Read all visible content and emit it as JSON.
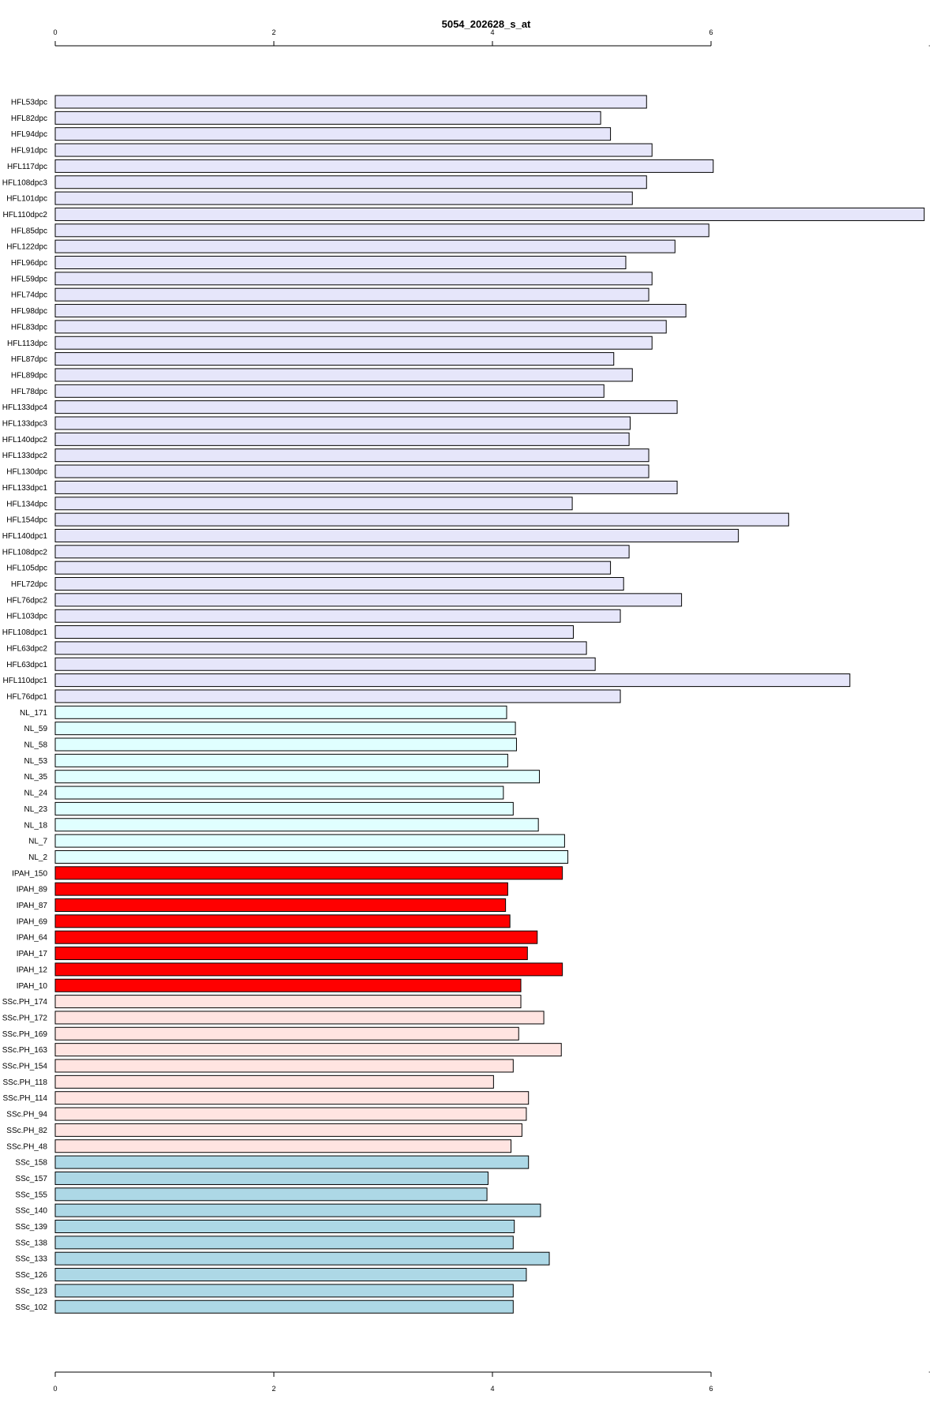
{
  "chart_data": {
    "type": "bar",
    "orientation": "horizontal",
    "title": "5054_202628_s_at",
    "xlabel": "",
    "ylabel": "",
    "xlim": [
      0,
      8
    ],
    "x_ticks": [
      0,
      2,
      4,
      6
    ],
    "grid": false,
    "legend": "none",
    "categories": [
      "HFL53dpc",
      "HFL82dpc",
      "HFL94dpc",
      "HFL91dpc",
      "HFL117dpc",
      "HFL108dpc3",
      "HFL101dpc",
      "HFL110dpc2",
      "HFL85dpc",
      "HFL122dpc",
      "HFL96dpc",
      "HFL59dpc",
      "HFL74dpc",
      "HFL98dpc",
      "HFL83dpc",
      "HFL113dpc",
      "HFL87dpc",
      "HFL89dpc",
      "HFL78dpc",
      "HFL133dpc4",
      "HFL133dpc3",
      "HFL140dpc2",
      "HFL133dpc2",
      "HFL130dpc",
      "HFL133dpc1",
      "HFL134dpc",
      "HFL154dpc",
      "HFL140dpc1",
      "HFL108dpc2",
      "HFL105dpc",
      "HFL72dpc",
      "HFL76dpc2",
      "HFL103dpc",
      "HFL108dpc1",
      "HFL63dpc2",
      "HFL63dpc1",
      "HFL110dpc1",
      "HFL76dpc1",
      "NL_171",
      "NL_59",
      "NL_58",
      "NL_53",
      "NL_35",
      "NL_24",
      "NL_23",
      "NL_18",
      "NL_7",
      "NL_2",
      "IPAH_150",
      "IPAH_89",
      "IPAH_87",
      "IPAH_69",
      "IPAH_64",
      "IPAH_17",
      "IPAH_12",
      "IPAH_10",
      "SSc.PH_174",
      "SSc.PH_172",
      "SSc.PH_169",
      "SSc.PH_163",
      "SSc.PH_154",
      "SSc.PH_118",
      "SSc.PH_114",
      "SSc.PH_94",
      "SSc.PH_82",
      "SSc.PH_48",
      "SSc_158",
      "SSc_157",
      "SSc_155",
      "SSc_140",
      "SSc_139",
      "SSc_138",
      "SSc_133",
      "SSc_126",
      "SSc_123",
      "SSc_102"
    ],
    "values": [
      5.41,
      4.99,
      5.08,
      5.46,
      6.02,
      5.41,
      5.28,
      7.95,
      5.98,
      5.67,
      5.22,
      5.46,
      5.43,
      5.77,
      5.59,
      5.46,
      5.11,
      5.28,
      5.02,
      5.69,
      5.26,
      5.25,
      5.43,
      5.43,
      5.69,
      4.73,
      6.71,
      6.25,
      5.25,
      5.08,
      5.2,
      5.73,
      5.17,
      4.74,
      4.86,
      4.94,
      7.27,
      5.17,
      4.13,
      4.21,
      4.22,
      4.14,
      4.43,
      4.1,
      4.19,
      4.42,
      4.66,
      4.69,
      4.64,
      4.14,
      4.12,
      4.16,
      4.41,
      4.32,
      4.64,
      4.26,
      4.26,
      4.47,
      4.24,
      4.63,
      4.19,
      4.01,
      4.33,
      4.31,
      4.27,
      4.17,
      4.33,
      3.96,
      3.95,
      4.44,
      4.2,
      4.19,
      4.52,
      4.31,
      4.19,
      4.19
    ],
    "colors": [
      "#e6e6fa",
      "#e6e6fa",
      "#e6e6fa",
      "#e6e6fa",
      "#e6e6fa",
      "#e6e6fa",
      "#e6e6fa",
      "#e6e6fa",
      "#e6e6fa",
      "#e6e6fa",
      "#e6e6fa",
      "#e6e6fa",
      "#e6e6fa",
      "#e6e6fa",
      "#e6e6fa",
      "#e6e6fa",
      "#e6e6fa",
      "#e6e6fa",
      "#e6e6fa",
      "#e6e6fa",
      "#e6e6fa",
      "#e6e6fa",
      "#e6e6fa",
      "#e6e6fa",
      "#e6e6fa",
      "#e6e6fa",
      "#e6e6fa",
      "#e6e6fa",
      "#e6e6fa",
      "#e6e6fa",
      "#e6e6fa",
      "#e6e6fa",
      "#e6e6fa",
      "#e6e6fa",
      "#e6e6fa",
      "#e6e6fa",
      "#e6e6fa",
      "#e6e6fa",
      "#e0ffff",
      "#e0ffff",
      "#e0ffff",
      "#e0ffff",
      "#e0ffff",
      "#e0ffff",
      "#e0ffff",
      "#e0ffff",
      "#e0ffff",
      "#e0ffff",
      "#ff0000",
      "#ff0000",
      "#ff0000",
      "#ff0000",
      "#ff0000",
      "#ff0000",
      "#ff0000",
      "#ff0000",
      "#ffe4e1",
      "#ffe4e1",
      "#ffe4e1",
      "#ffe4e1",
      "#ffe4e1",
      "#ffe4e1",
      "#ffe4e1",
      "#ffe4e1",
      "#ffe4e1",
      "#ffe4e1",
      "#add8e6",
      "#add8e6",
      "#add8e6",
      "#add8e6",
      "#add8e6",
      "#add8e6",
      "#add8e6",
      "#add8e6",
      "#add8e6",
      "#add8e6"
    ]
  }
}
